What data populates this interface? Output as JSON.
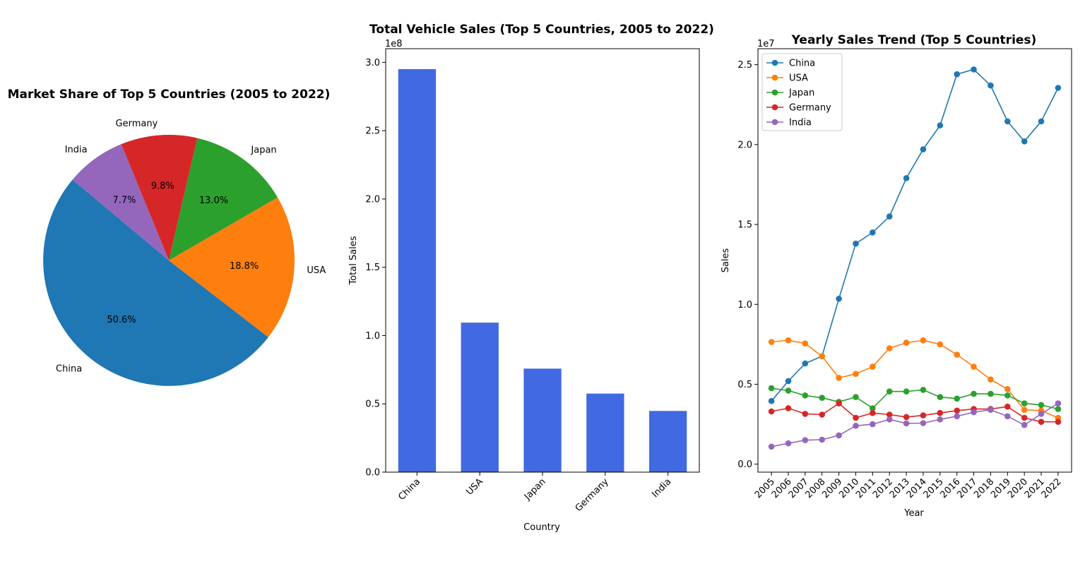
{
  "chart_data": [
    {
      "type": "pie",
      "title": "Market Share of Top 5 Countries (2005 to 2022)",
      "labels": [
        "China",
        "USA",
        "Japan",
        "Germany",
        "India"
      ],
      "pct_labels": [
        "50.6%",
        "18.8%",
        "13.0%",
        "9.8%",
        "7.7%"
      ],
      "values": [
        50.6,
        18.8,
        13.0,
        9.8,
        7.7
      ],
      "colors": [
        "#1f77b4",
        "#ff7f0e",
        "#2ca02c",
        "#d62728",
        "#9467bd"
      ],
      "start_angle_deg": 140,
      "direction": "counterclockwise"
    },
    {
      "type": "bar",
      "title": "Total Vehicle Sales (Top 5 Countries, 2005 to 2022)",
      "xlabel": "Country",
      "ylabel": "Total Sales",
      "offset_label": "1e8",
      "categories": [
        "China",
        "USA",
        "Japan",
        "Germany",
        "India"
      ],
      "values": [
        2.95,
        1.095,
        0.758,
        0.575,
        0.448
      ],
      "ylim": [
        0,
        3.1
      ],
      "yticks": [
        0.0,
        0.5,
        1.0,
        1.5,
        2.0,
        2.5,
        3.0
      ],
      "ytick_labels": [
        "0.0",
        "0.5",
        "1.0",
        "1.5",
        "2.0",
        "2.5",
        "3.0"
      ],
      "color": "#4169e1",
      "grid": false
    },
    {
      "type": "line",
      "title": "Yearly Sales Trend (Top 5 Countries)",
      "xlabel": "Year",
      "ylabel": "Sales",
      "offset_label": "1e7",
      "x": [
        "2005",
        "2006",
        "2007",
        "2008",
        "2009",
        "2010",
        "2011",
        "2012",
        "2013",
        "2014",
        "2015",
        "2016",
        "2017",
        "2018",
        "2019",
        "2020",
        "2021",
        "2022"
      ],
      "ylim": [
        -0.05,
        2.6
      ],
      "yticks": [
        0.0,
        0.5,
        1.0,
        1.5,
        2.0,
        2.5
      ],
      "ytick_labels": [
        "0.0",
        "0.5",
        "1.0",
        "1.5",
        "2.0",
        "2.5"
      ],
      "legend_position": "upper-left",
      "grid": false,
      "series": [
        {
          "name": "China",
          "color": "#1f77b4",
          "values": [
            0.395,
            0.52,
            0.63,
            0.675,
            1.035,
            1.38,
            1.45,
            1.55,
            1.79,
            1.97,
            2.12,
            2.44,
            2.47,
            2.37,
            2.145,
            2.02,
            2.145,
            2.355
          ]
        },
        {
          "name": "USA",
          "color": "#ff7f0e",
          "values": [
            0.765,
            0.775,
            0.755,
            0.675,
            0.54,
            0.565,
            0.61,
            0.725,
            0.76,
            0.775,
            0.75,
            0.685,
            0.61,
            0.53,
            0.47,
            0.34,
            0.335,
            0.29
          ]
        },
        {
          "name": "Japan",
          "color": "#2ca02c",
          "values": [
            0.475,
            0.46,
            0.43,
            0.415,
            0.39,
            0.42,
            0.35,
            0.455,
            0.455,
            0.465,
            0.42,
            0.41,
            0.44,
            0.44,
            0.43,
            0.38,
            0.37,
            0.345
          ]
        },
        {
          "name": "Germany",
          "color": "#d62728",
          "values": [
            0.33,
            0.35,
            0.315,
            0.31,
            0.38,
            0.29,
            0.32,
            0.31,
            0.295,
            0.305,
            0.32,
            0.335,
            0.345,
            0.345,
            0.36,
            0.29,
            0.265,
            0.265
          ]
        },
        {
          "name": "India",
          "color": "#9467bd",
          "values": [
            0.11,
            0.13,
            0.15,
            0.153,
            0.18,
            0.24,
            0.25,
            0.28,
            0.255,
            0.257,
            0.28,
            0.3,
            0.325,
            0.34,
            0.3,
            0.245,
            0.315,
            0.38
          ]
        }
      ]
    }
  ]
}
